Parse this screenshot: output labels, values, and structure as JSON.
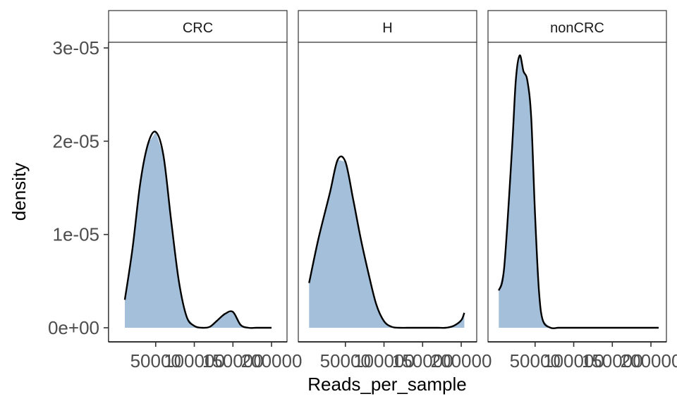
{
  "chart_data": {
    "type": "area",
    "xlabel": "Reads_per_sample",
    "ylabel": "density",
    "xlim": [
      0,
      210000
    ],
    "ylim": [
      0,
      3e-05
    ],
    "y_ticks": [
      {
        "value": 0,
        "label": "0e+00"
      },
      {
        "value": 1e-05,
        "label": "1e-05"
      },
      {
        "value": 2e-05,
        "label": "2e-05"
      },
      {
        "value": 3e-05,
        "label": "3e-05"
      }
    ],
    "x_ticks": [
      {
        "value": 50000,
        "label": "50000"
      },
      {
        "value": 100000,
        "label": "100000"
      },
      {
        "value": 150000,
        "label": "150000"
      },
      {
        "value": 200000,
        "label": "200000"
      }
    ],
    "fill_color": "#a3bfda",
    "line_color": "#000000",
    "facets": [
      {
        "name": "CRC",
        "x": [
          10000,
          20000,
          30000,
          40000,
          50000,
          60000,
          70000,
          80000,
          90000,
          100000,
          110000,
          120000,
          130000,
          140000,
          150000,
          160000,
          170000,
          180000,
          190000,
          200000
        ],
        "y": [
          3e-06,
          8.5e-06,
          1.55e-05,
          1.97e-05,
          2.1e-05,
          1.85e-05,
          1.15e-05,
          5e-06,
          1.2e-06,
          2e-07,
          0.0,
          1e-07,
          8e-07,
          1.5e-06,
          1.7e-06,
          3e-07,
          0.0,
          0.0,
          0.0,
          0.0
        ]
      },
      {
        "name": "H",
        "x": [
          3000,
          15000,
          30000,
          40000,
          50000,
          60000,
          70000,
          80000,
          90000,
          100000,
          110000,
          120000,
          130000,
          140000,
          150000,
          160000,
          170000,
          180000,
          190000,
          200000,
          204000
        ],
        "y": [
          4.8e-06,
          9.5e-06,
          1.45e-05,
          1.8e-05,
          1.78e-05,
          1.38e-05,
          9.5e-06,
          5.8e-06,
          2.5e-06,
          7e-07,
          1e-07,
          0.0,
          0.0,
          0.0,
          0.0,
          0.0,
          0.0,
          0.0,
          2e-07,
          8e-07,
          1.6e-06
        ]
      },
      {
        "name": "nonCRC",
        "x": [
          3000,
          10000,
          20000,
          25000,
          30000,
          35000,
          40000,
          45000,
          50000,
          55000,
          60000,
          70000,
          80000,
          90000,
          100000,
          120000,
          150000,
          180000,
          210000
        ],
        "y": [
          4e-06,
          6.5e-06,
          1.9e-05,
          2.65e-05,
          2.92e-05,
          2.75e-05,
          2.65e-05,
          2.25e-05,
          1.2e-05,
          4e-06,
          8e-07,
          0.0,
          0.0,
          0.0,
          0.0,
          0.0,
          0.0,
          0.0,
          0.0
        ]
      }
    ]
  }
}
